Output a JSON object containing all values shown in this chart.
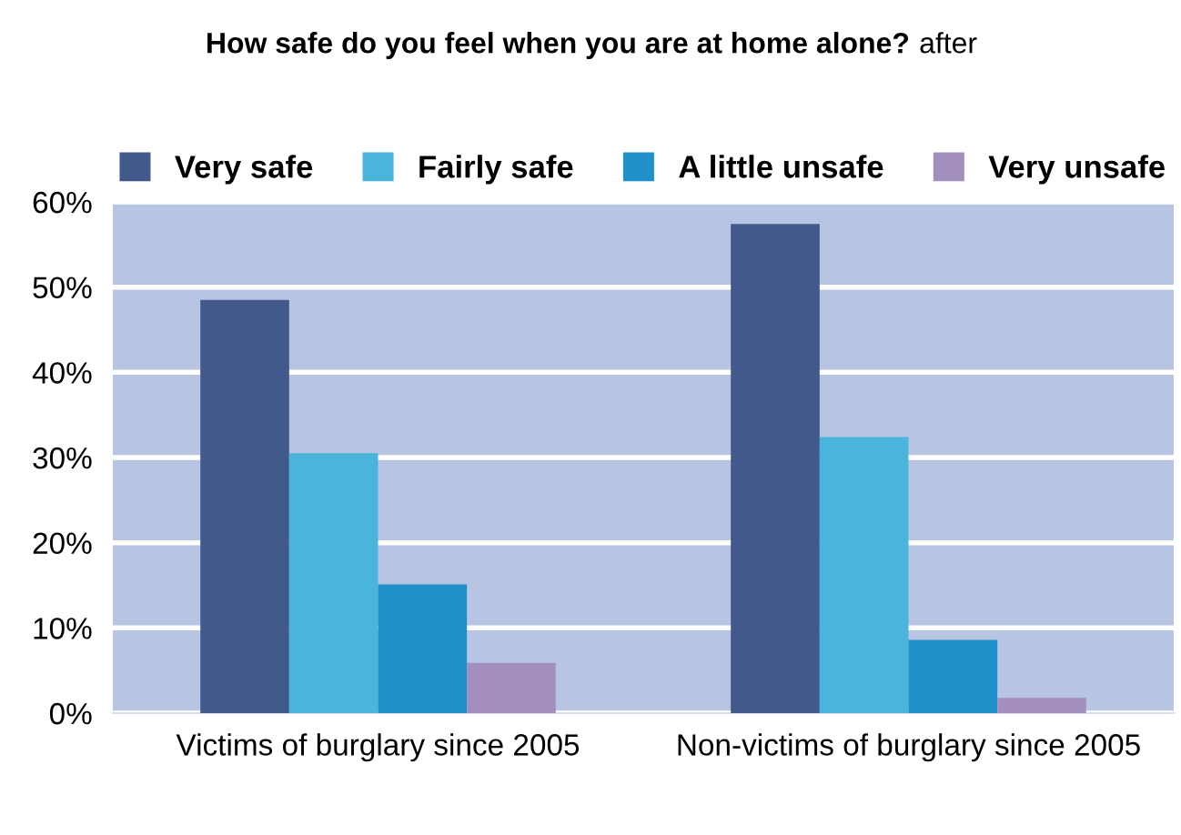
{
  "chart_data": {
    "type": "bar",
    "title": "How safe do you feel when you are at home alone?",
    "subtitle": "after",
    "categories": [
      "Victims of burglary since 2005",
      "Non-victims of burglary since 2005"
    ],
    "series": [
      {
        "name": "Very safe",
        "color": "#42598c",
        "values": [
          48.5,
          57.4
        ]
      },
      {
        "name": "Fairly safe",
        "color": "#4ab4dc",
        "values": [
          30.5,
          32.4
        ]
      },
      {
        "name": "A little unsafe",
        "color": "#1f90ca",
        "values": [
          15.1,
          8.6
        ]
      },
      {
        "name": "Very unsafe",
        "color": "#a38fbd",
        "values": [
          5.9,
          1.8
        ]
      }
    ],
    "ylim": [
      0,
      60
    ],
    "yticks": [
      {
        "value": 0,
        "label": "0%"
      },
      {
        "value": 10,
        "label": "10%"
      },
      {
        "value": 20,
        "label": "20%"
      },
      {
        "value": 30,
        "label": "30%"
      },
      {
        "value": 40,
        "label": "40%"
      },
      {
        "value": 50,
        "label": "50%"
      },
      {
        "value": 60,
        "label": "60%"
      }
    ],
    "grid": "y",
    "legend": "top"
  }
}
